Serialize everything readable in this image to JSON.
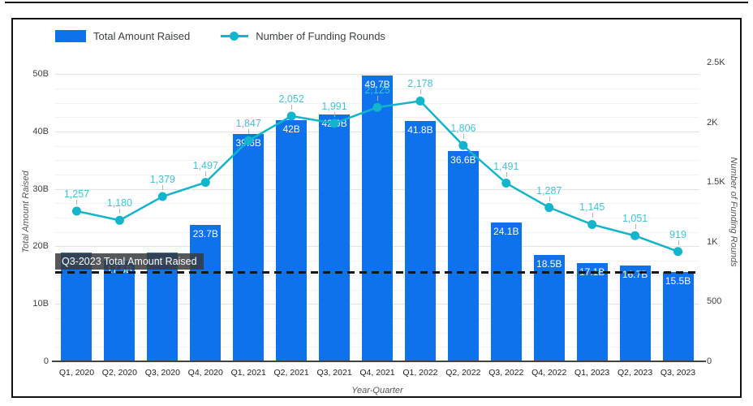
{
  "legend": {
    "bar_label": "Total Amount Raised",
    "line_label": "Number of Funding Rounds"
  },
  "colors": {
    "bar": "#0d72ec",
    "line": "#12b5cb",
    "line_label_text": "#41c3d8",
    "grid_major": "#e3e3e3",
    "grid_minor": "#f2f2f2"
  },
  "tooltip": {
    "text": "Q3-2023 Total Amount Raised"
  },
  "chart_data": {
    "type": "combo-bar-line",
    "title": "",
    "categories": [
      "Q1, 2020",
      "Q2, 2020",
      "Q3, 2020",
      "Q4, 2020",
      "Q1, 2021",
      "Q2, 2021",
      "Q3, 2021",
      "Q4, 2021",
      "Q1, 2022",
      "Q2, 2022",
      "Q3, 2022",
      "Q4, 2022",
      "Q1, 2023",
      "Q2, 2023",
      "Q3, 2023"
    ],
    "series": [
      {
        "name": "Total Amount Raised",
        "type": "bar",
        "axis": "left",
        "unit": "B",
        "values": [
          19,
          17.5,
          19,
          23.7,
          39.6,
          42,
          42.9,
          49.7,
          41.8,
          36.6,
          24.1,
          18.5,
          17.1,
          16.7,
          15.5
        ],
        "labels": [
          "19B",
          "17.5B",
          "19B",
          "23.7B",
          "39.6B",
          "42B",
          "42.9B",
          "49.7B",
          "41.8B",
          "36.6B",
          "24.1B",
          "18.5B",
          "17.1B",
          "16.7B",
          "15.5B"
        ]
      },
      {
        "name": "Number of Funding Rounds",
        "type": "line",
        "axis": "right",
        "values": [
          1257,
          1180,
          1379,
          1497,
          1847,
          2052,
          1991,
          2125,
          2178,
          1806,
          1491,
          1287,
          1145,
          1051,
          919
        ],
        "labels": [
          "1,257",
          "1,180",
          "1,379",
          "1,497",
          "1,847",
          "2,052",
          "1,991",
          "2,125",
          "2,178",
          "1,806",
          "1,491",
          "1,287",
          "1,145",
          "1,051",
          "919"
        ]
      }
    ],
    "x_axis": {
      "title": "Year-Quarter"
    },
    "left_axis": {
      "title": "Total Amount Raised",
      "tick_values": [
        0,
        10,
        20,
        30,
        40,
        50
      ],
      "tick_labels": [
        "0",
        "10B",
        "20B",
        "30B",
        "40B",
        "50B"
      ],
      "range": [
        0,
        52
      ]
    },
    "right_axis": {
      "title": "Number of Funding Rounds",
      "tick_values": [
        0,
        500,
        1000,
        1500,
        2000,
        2500
      ],
      "tick_labels": [
        "0",
        "500",
        "1K",
        "1.5K",
        "2K",
        "2.5K"
      ],
      "range": [
        0,
        2500
      ]
    },
    "grid": {
      "major_interval_left": 10,
      "minor_interval_left": 2.5
    },
    "legend_position": "top-left",
    "reference_line": {
      "value": 15.5,
      "axis": "left",
      "tooltip": "Q3-2023 Total Amount Raised"
    }
  }
}
